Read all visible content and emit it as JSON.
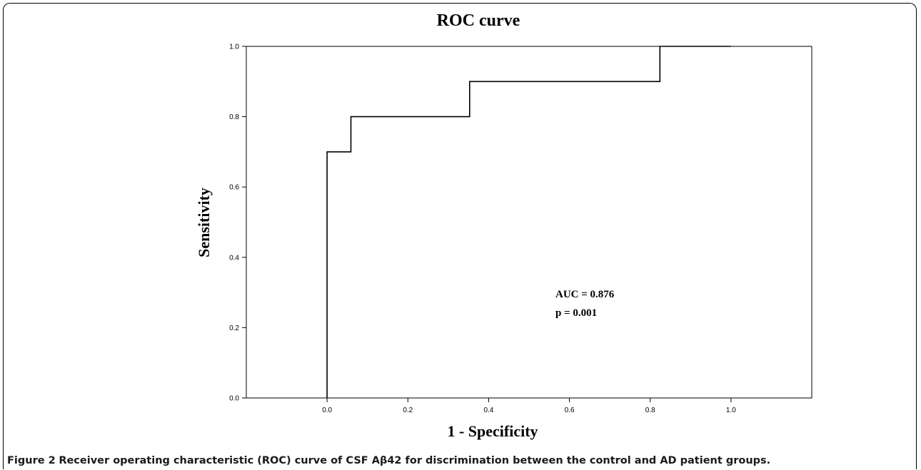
{
  "chart_data": {
    "type": "line",
    "title": "ROC curve",
    "xlabel": "1 - Specificity",
    "ylabel": "Sensitivity",
    "xlim": [
      -0.2,
      1.2
    ],
    "ylim": [
      0.0,
      1.0
    ],
    "x_ticks": [
      "0.0",
      "0.2",
      "0.4",
      "0.6",
      "0.8",
      "1.0"
    ],
    "y_ticks": [
      "0.0",
      "0.2",
      "0.4",
      "0.6",
      "0.8",
      "1.0"
    ],
    "grid": false,
    "series": [
      {
        "points": [
          [
            0.0,
            0.0
          ],
          [
            0.0,
            0.7
          ],
          [
            0.059,
            0.7
          ],
          [
            0.059,
            0.8
          ],
          [
            0.353,
            0.8
          ],
          [
            0.353,
            0.9
          ],
          [
            0.824,
            0.9
          ],
          [
            0.824,
            1.0
          ],
          [
            1.0,
            1.0
          ]
        ],
        "color": "#000000"
      }
    ],
    "annotations": [
      "AUC = 0.876",
      "p = 0.001"
    ]
  },
  "caption": {
    "label": "Figure 2",
    "text": "Receiver operating characteristic (ROC) curve of CSF Aβ42 for discrimination between the control and AD patient groups."
  }
}
